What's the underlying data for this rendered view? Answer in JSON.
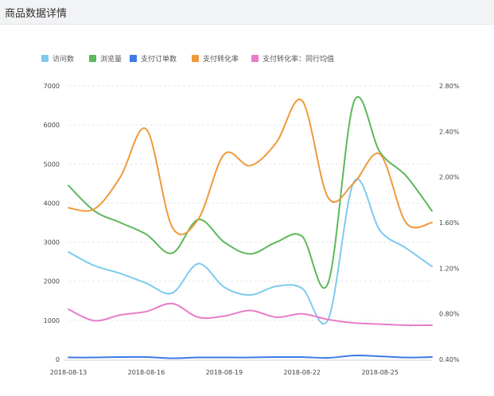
{
  "header": {
    "title": "商品数据详情"
  },
  "chart_data": {
    "type": "line",
    "smooth": true,
    "legend": {
      "placement": "top-left",
      "items": [
        {
          "name": "访问数",
          "color": "#7ecaee"
        },
        {
          "name": "浏览量",
          "color": "#5cb85c"
        },
        {
          "name": "支付订单数",
          "color": "#3c7be8"
        },
        {
          "name": "支付转化率",
          "color": "#f0993a"
        },
        {
          "name": "支付转化率：同行均值",
          "color": "#e87cc8"
        }
      ]
    },
    "x": [
      "2018-08-13",
      "2018-08-14",
      "2018-08-15",
      "2018-08-16",
      "2018-08-17",
      "2018-08-18",
      "2018-08-19",
      "2018-08-20",
      "2018-08-21",
      "2018-08-22",
      "2018-08-23",
      "2018-08-24",
      "2018-08-25",
      "2018-08-26",
      "2018-08-27"
    ],
    "x_tick_labels": [
      {
        "index": 0,
        "label": "2018-08-13"
      },
      {
        "index": 3,
        "label": "2018-08-16"
      },
      {
        "index": 6,
        "label": "2018-08-19"
      },
      {
        "index": 9,
        "label": "2018-08-22"
      },
      {
        "index": 12,
        "label": "2018-08-25"
      }
    ],
    "y_left": {
      "min": 0,
      "max": 7000,
      "ticks": [
        0,
        1000,
        2000,
        3000,
        4000,
        5000,
        6000,
        7000
      ]
    },
    "y_right": {
      "min": 0.4,
      "max": 2.8,
      "ticks": [
        "0.40%",
        "0.80%",
        "1.20%",
        "1.60%",
        "2.00%",
        "2.40%",
        "2.80%"
      ],
      "tick_values": [
        0.4,
        0.8,
        1.2,
        1.6,
        2.0,
        2.4,
        2.8
      ]
    },
    "grid": "horizontal-dashed",
    "series": [
      {
        "name": "访问数",
        "axis": "left",
        "color": "#7ecaee",
        "values": [
          2750,
          2400,
          2200,
          1950,
          1700,
          2450,
          1850,
          1650,
          1870,
          1820,
          1020,
          4550,
          3300,
          2850,
          2380
        ]
      },
      {
        "name": "浏览量",
        "axis": "left",
        "color": "#5cb85c",
        "values": [
          4450,
          3800,
          3500,
          3200,
          2720,
          3580,
          3000,
          2700,
          3000,
          3150,
          1950,
          6600,
          5300,
          4700,
          3800
        ]
      },
      {
        "name": "支付订单数",
        "axis": "left",
        "color": "#3c7be8",
        "values": [
          50,
          50,
          60,
          60,
          30,
          50,
          50,
          50,
          60,
          60,
          40,
          100,
          80,
          50,
          60
        ]
      },
      {
        "name": "支付转化率",
        "axis": "right",
        "color": "#f0993a",
        "values": [
          1.73,
          1.72,
          2.0,
          2.42,
          1.56,
          1.63,
          2.2,
          2.1,
          2.3,
          2.67,
          1.82,
          1.95,
          2.2,
          1.6,
          1.6
        ]
      },
      {
        "name": "支付转化率：同行均值",
        "axis": "right",
        "color": "#e87cc8",
        "values": [
          0.84,
          0.74,
          0.79,
          0.82,
          0.89,
          0.77,
          0.78,
          0.83,
          0.77,
          0.8,
          0.75,
          0.72,
          0.71,
          0.7,
          0.7
        ]
      }
    ]
  }
}
